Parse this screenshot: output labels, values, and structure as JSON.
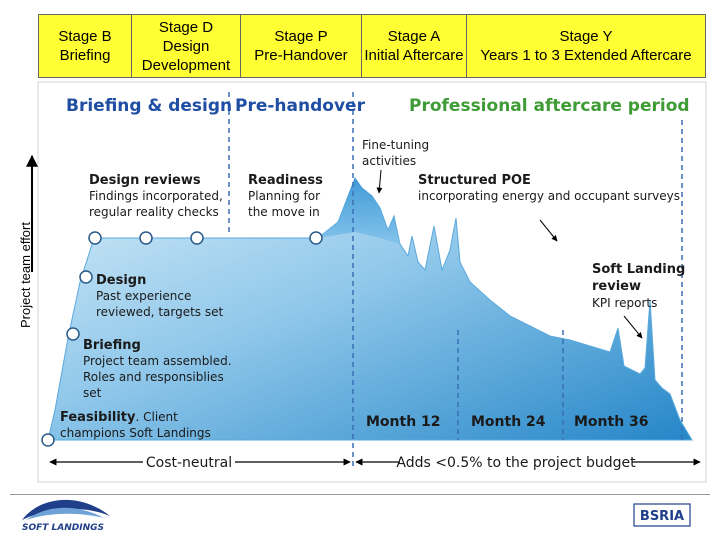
{
  "stages": [
    {
      "name": "Stage B",
      "description": "Briefing"
    },
    {
      "name": "Stage D",
      "description": "Design Development"
    },
    {
      "name": "Stage P",
      "description": "Pre-Handover"
    },
    {
      "name": "Stage A",
      "description": "Initial Aftercare"
    },
    {
      "name": "Stage Y",
      "description": "Years 1 to 3 Extended Aftercare"
    }
  ],
  "y_axis_label": "Project team effort",
  "sections": {
    "briefing_design": "Briefing & design",
    "pre_handover": "Pre-handover",
    "aftercare": "Professional aftercare period"
  },
  "annotations": {
    "fine_tuning": [
      "Fine-tuning",
      "activities"
    ],
    "design_reviews": {
      "title": "Design reviews",
      "lines": [
        "Findings incorporated,",
        "regular reality checks"
      ]
    },
    "readiness": {
      "title": "Readiness",
      "lines": [
        "Planning for",
        "the move in"
      ]
    },
    "structured_poe": {
      "title": "Structured POE",
      "lines": [
        "incorporating energy and occupant surveys"
      ]
    },
    "design": {
      "title": "Design",
      "lines": [
        "Past experience",
        "reviewed, targets set"
      ]
    },
    "soft_landing_review": {
      "title_lines": [
        "Soft Landing",
        "review"
      ],
      "lines": [
        "KPI reports"
      ]
    },
    "briefing": {
      "title": "Briefing",
      "lines": [
        "Project team assembled.",
        "Roles and responsiblies",
        "set"
      ]
    },
    "feasibility": {
      "title": "Feasibility",
      "lines": [
        ". Client",
        "champions Soft Landings"
      ]
    }
  },
  "months": [
    "Month 12",
    "Month 24",
    "Month 36"
  ],
  "bottom": {
    "cost_neutral": "Cost-neutral",
    "budget": "Adds <0.5% to the project budget"
  },
  "logos": {
    "soft_landings": "SOFT LANDINGS",
    "bsria": "BSRIA"
  },
  "colors": {
    "header_fill": "#ffff33",
    "title_blue": "#1f4ea3",
    "title_green": "#3f9b35",
    "area_light": "#c6e3f5",
    "area_dark": "#2a8ccc"
  }
}
